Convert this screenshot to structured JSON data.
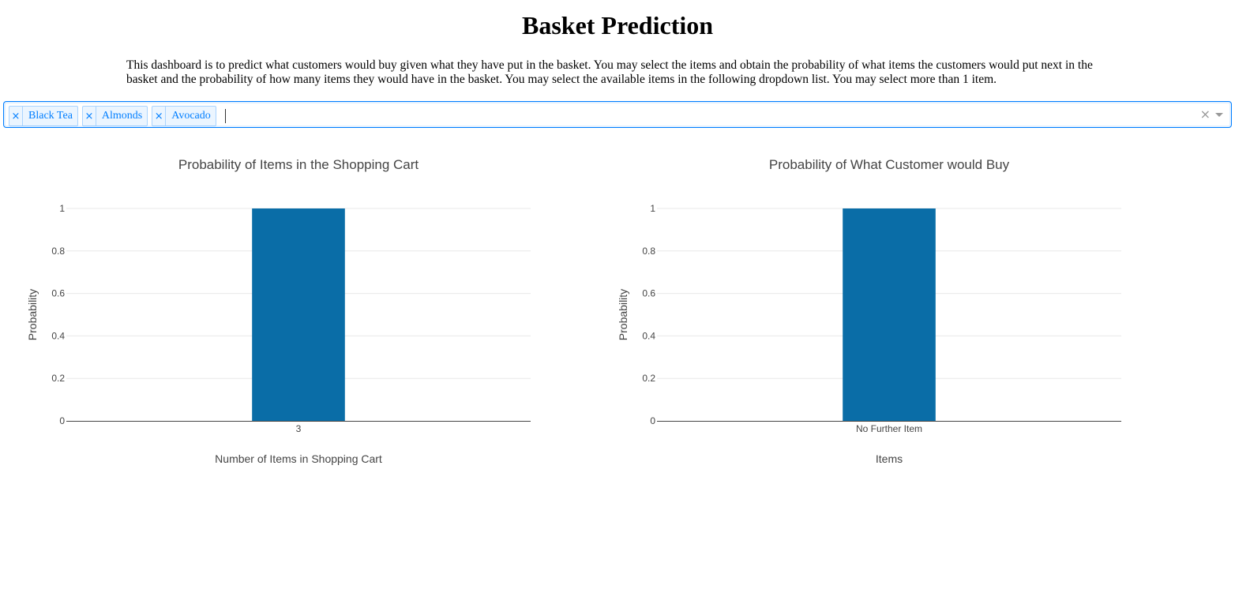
{
  "page": {
    "title": "Basket Prediction",
    "description": "This dashboard is to predict what customers would buy given what they have put in the basket. You may select the items and obtain the probability of what items the customers would put next in the basket and the probability of how many items they would have in the basket. You may select the available items in the following dropdown list. You may select more than 1 item."
  },
  "dropdown": {
    "selected": [
      {
        "label": "Black Tea",
        "remove_glyph": "×"
      },
      {
        "label": "Almonds",
        "remove_glyph": "×"
      },
      {
        "label": "Avocado",
        "remove_glyph": "×"
      }
    ],
    "clear_glyph": "×",
    "accent_color": "#007eff"
  },
  "colors": {
    "bar": "#0a6da7",
    "grid": "#e8e8e8",
    "axis_text": "#444444"
  },
  "chart_data": [
    {
      "type": "bar",
      "title": "Probability of Items in the Shopping Cart",
      "xlabel": "Number of Items in Shopping Cart",
      "ylabel": "Probability",
      "categories": [
        "3"
      ],
      "values": [
        1
      ],
      "ylim": [
        0,
        1
      ],
      "yticks": [
        "0",
        "0.2",
        "0.4",
        "0.6",
        "0.8",
        "1"
      ],
      "grid": true
    },
    {
      "type": "bar",
      "title": "Probability of What Customer would Buy",
      "xlabel": "Items",
      "ylabel": "Probability",
      "categories": [
        "No Further Item"
      ],
      "values": [
        1
      ],
      "ylim": [
        0,
        1
      ],
      "yticks": [
        "0",
        "0.2",
        "0.4",
        "0.6",
        "0.8",
        "1"
      ],
      "grid": true
    }
  ]
}
